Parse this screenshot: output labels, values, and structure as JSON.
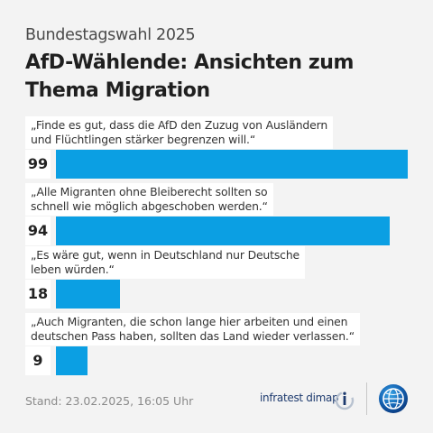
{
  "header": {
    "kicker": "Bundestagswahl 2025",
    "title": "AfD-Wählende: Ansichten zum Thema Migration"
  },
  "chart_data": {
    "type": "bar",
    "orientation": "horizontal",
    "title": "AfD-Wählende: Ansichten zum Thema Migration",
    "categories": [
      "„Finde es gut, dass die AfD den Zuzug von Ausländern und Flüchtlingen stärker begrenzen will.“",
      "„Alle Migranten ohne Bleiberecht sollten so schnell wie möglich abgeschoben werden.“",
      "„Es wäre gut, wenn in Deutschland nur Deutsche leben würden.“",
      "„Auch Migranten, die schon lange hier arbeiten und einen deutschen Pass haben, sollten das Land wieder verlassen.“"
    ],
    "category_lines": [
      [
        "„Finde es gut, dass die AfD den Zuzug von Ausländern",
        "und Flüchtlingen stärker begrenzen will.“"
      ],
      [
        "„Alle Migranten ohne Bleiberecht sollten so",
        "schnell wie möglich abgeschoben werden.“"
      ],
      [
        "„Es wäre gut, wenn in Deutschland nur Deutsche",
        "leben würden.“"
      ],
      [
        "„Auch Migranten, die schon lange hier arbeiten und einen",
        "deutschen Pass haben, sollten das Land wieder verlassen.“"
      ]
    ],
    "values": [
      99,
      94,
      18,
      9
    ],
    "xlim": [
      0,
      99
    ],
    "bar_color": "#0b9fe3",
    "grid": false,
    "legend": "none"
  },
  "footer": {
    "stand": "Stand:  23.02.2025, 16:05 Uhr",
    "source_name": "infratest dimap",
    "source_logo_icon": "infratest-dimap-logo-icon",
    "broadcaster_logo_icon": "tagesschau-globe-logo-icon"
  },
  "colors": {
    "background": "#f3f3f3",
    "bar": "#0b9fe3",
    "box": "#ffffff",
    "logo_blue": "#1d3a6e"
  }
}
